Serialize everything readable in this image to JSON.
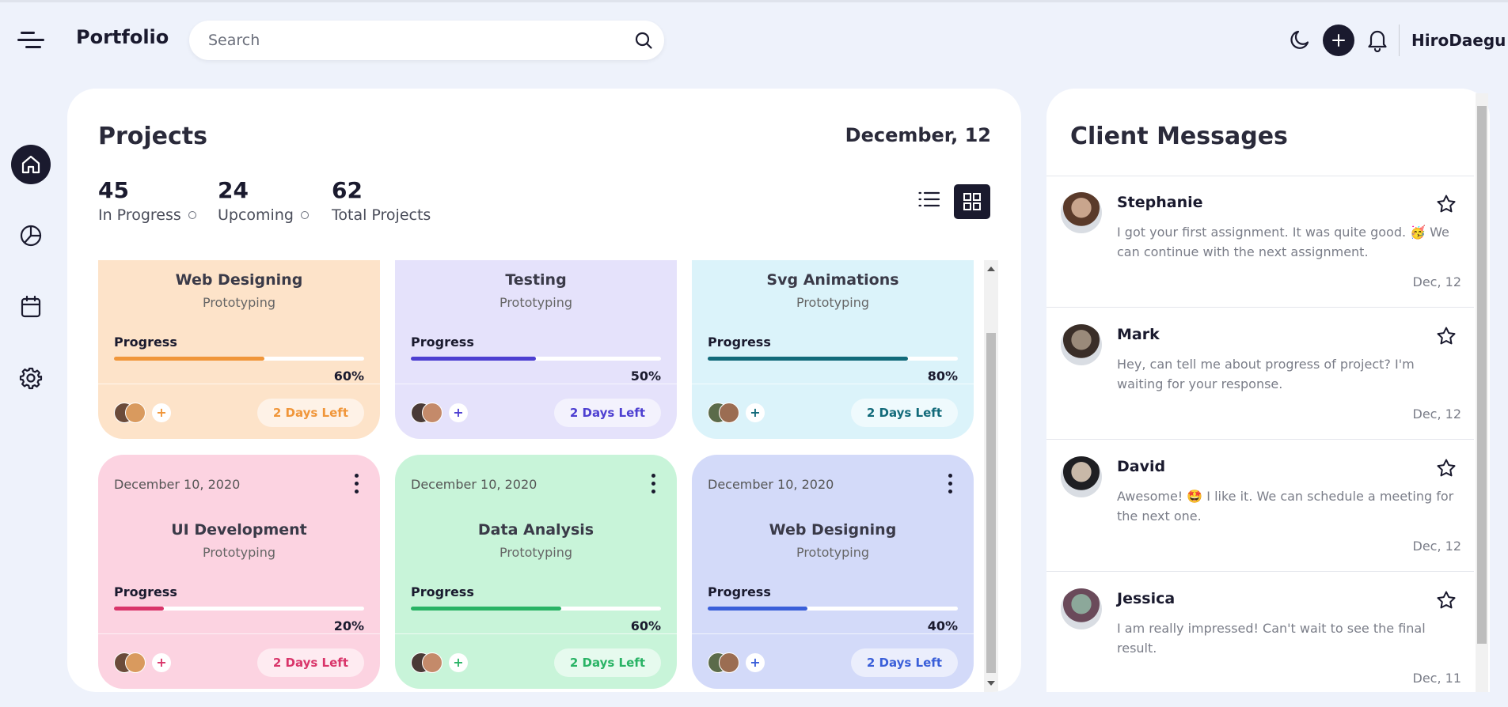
{
  "header": {
    "brand": "Portfolio",
    "search_placeholder": "Search",
    "username": "HiroDaegu"
  },
  "icons": {
    "menu": "menu-icon",
    "search": "search-icon",
    "theme": "moon-icon",
    "add": "plus-icon",
    "notifications": "bell-icon",
    "nav": [
      "home-icon",
      "pie-chart-icon",
      "calendar-icon",
      "gear-icon"
    ],
    "view": [
      "list-icon",
      "grid-icon"
    ]
  },
  "colors": {
    "dark": "#1a1a2e",
    "background": "#eef2fb"
  },
  "projects": {
    "title": "Projects",
    "date": "December, 12",
    "stats": [
      {
        "value": "45",
        "label": "In Progress"
      },
      {
        "value": "24",
        "label": "Upcoming"
      },
      {
        "value": "62",
        "label": "Total Projects"
      }
    ],
    "cards": [
      {
        "title": "Web Designing",
        "subtitle": "Prototyping",
        "progress_label": "Progress",
        "percent": "60%",
        "progress": 0.6,
        "days_left": "2 Days Left",
        "bg": "#fde3c9",
        "accent": "#f0963a"
      },
      {
        "title": "Testing",
        "subtitle": "Prototyping",
        "progress_label": "Progress",
        "percent": "50%",
        "progress": 0.5,
        "days_left": "2 Days Left",
        "bg": "#e5e2fb",
        "accent": "#4d3fd1"
      },
      {
        "title": "Svg Animations",
        "subtitle": "Prototyping",
        "progress_label": "Progress",
        "percent": "80%",
        "progress": 0.8,
        "days_left": "2 Days Left",
        "bg": "#dbf3fa",
        "accent": "#126a7a"
      },
      {
        "date": "December 10, 2020",
        "title": "UI Development",
        "subtitle": "Prototyping",
        "progress_label": "Progress",
        "percent": "20%",
        "progress": 0.2,
        "days_left": "2 Days Left",
        "bg": "#fcd3e1",
        "accent": "#d9356a"
      },
      {
        "date": "December 10, 2020",
        "title": "Data Analysis",
        "subtitle": "Prototyping",
        "progress_label": "Progress",
        "percent": "60%",
        "progress": 0.6,
        "days_left": "2 Days Left",
        "bg": "#c8f4d9",
        "accent": "#29b365"
      },
      {
        "date": "December 10, 2020",
        "title": "Web Designing",
        "subtitle": "Prototyping",
        "progress_label": "Progress",
        "percent": "40%",
        "progress": 0.4,
        "days_left": "2 Days Left",
        "bg": "#d3daf9",
        "accent": "#3a5fd9"
      }
    ]
  },
  "messages": {
    "title": "Client Messages",
    "items": [
      {
        "name": "Stephanie",
        "text": "I got your first assignment. It was quite good. 🥳 We can continue with the next assignment.",
        "date": "Dec, 12"
      },
      {
        "name": "Mark",
        "text": "Hey, can tell me about progress of project? I'm waiting for your response.",
        "date": "Dec, 12"
      },
      {
        "name": "David",
        "text": "Awesome! 🤩 I like it. We can schedule a meeting for the next one.",
        "date": "Dec, 12"
      },
      {
        "name": "Jessica",
        "text": "I am really impressed! Can't wait to see the final result.",
        "date": "Dec, 11"
      }
    ]
  }
}
